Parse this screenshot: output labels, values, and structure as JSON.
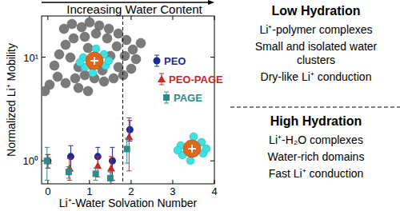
{
  "chart_data": {
    "type": "scatter",
    "title": "Increasing Water Content",
    "x_label": "Li⁺-Water Solvation Number",
    "y_label": "Normalized Li⁺ Mobility",
    "xlim": [
      -0.15,
      4
    ],
    "xticks": [
      0,
      1,
      2,
      3,
      4
    ],
    "ylim": [
      0.6,
      25
    ],
    "yticks": [
      {
        "value": 1,
        "label": "10⁰"
      },
      {
        "value": 10,
        "label": "10¹"
      }
    ],
    "log": "y",
    "legend": "right",
    "vline_x": 1.8,
    "series": [
      {
        "name": "PEO",
        "color": "#1c2b8f",
        "marker": "circle",
        "x": [
          0,
          0.55,
          1.2,
          1.55,
          1.97
        ],
        "values": [
          1.0,
          1.1,
          1.1,
          1.0,
          2.0
        ],
        "errors": [
          0.15,
          0.3,
          0.25,
          0.35,
          0.45
        ]
      },
      {
        "name": "PEO-PAGE",
        "color": "#c62828",
        "marker": "triangle",
        "x": [
          0,
          0.52,
          1.2,
          1.52,
          1.95
        ],
        "values": [
          1.0,
          0.85,
          0.9,
          0.85,
          1.7
        ],
        "errors": [
          0.15,
          0.2,
          0.2,
          0.25,
          0.9
        ]
      },
      {
        "name": "PAGE",
        "color": "#2e8b8b",
        "marker": "square",
        "x": [
          -0.02,
          0.5,
          1.15,
          1.5,
          1.9
        ],
        "values": [
          1.0,
          0.78,
          0.75,
          0.68,
          1.3
        ],
        "errors": [
          0.35,
          0.1,
          0.1,
          0.1,
          0.35
        ]
      }
    ],
    "side_panel": {
      "low": {
        "heading": "Low Hydration",
        "lines": [
          "Li⁺-polymer complexes",
          "Small and isolated water clusters",
          "Dry-like Li⁺ conduction"
        ]
      },
      "high": {
        "heading": "High Hydration",
        "lines": [
          "Li⁺-H₂O complexes",
          "Water-rich domains",
          "Fast Li⁺ conduction"
        ]
      }
    }
  }
}
